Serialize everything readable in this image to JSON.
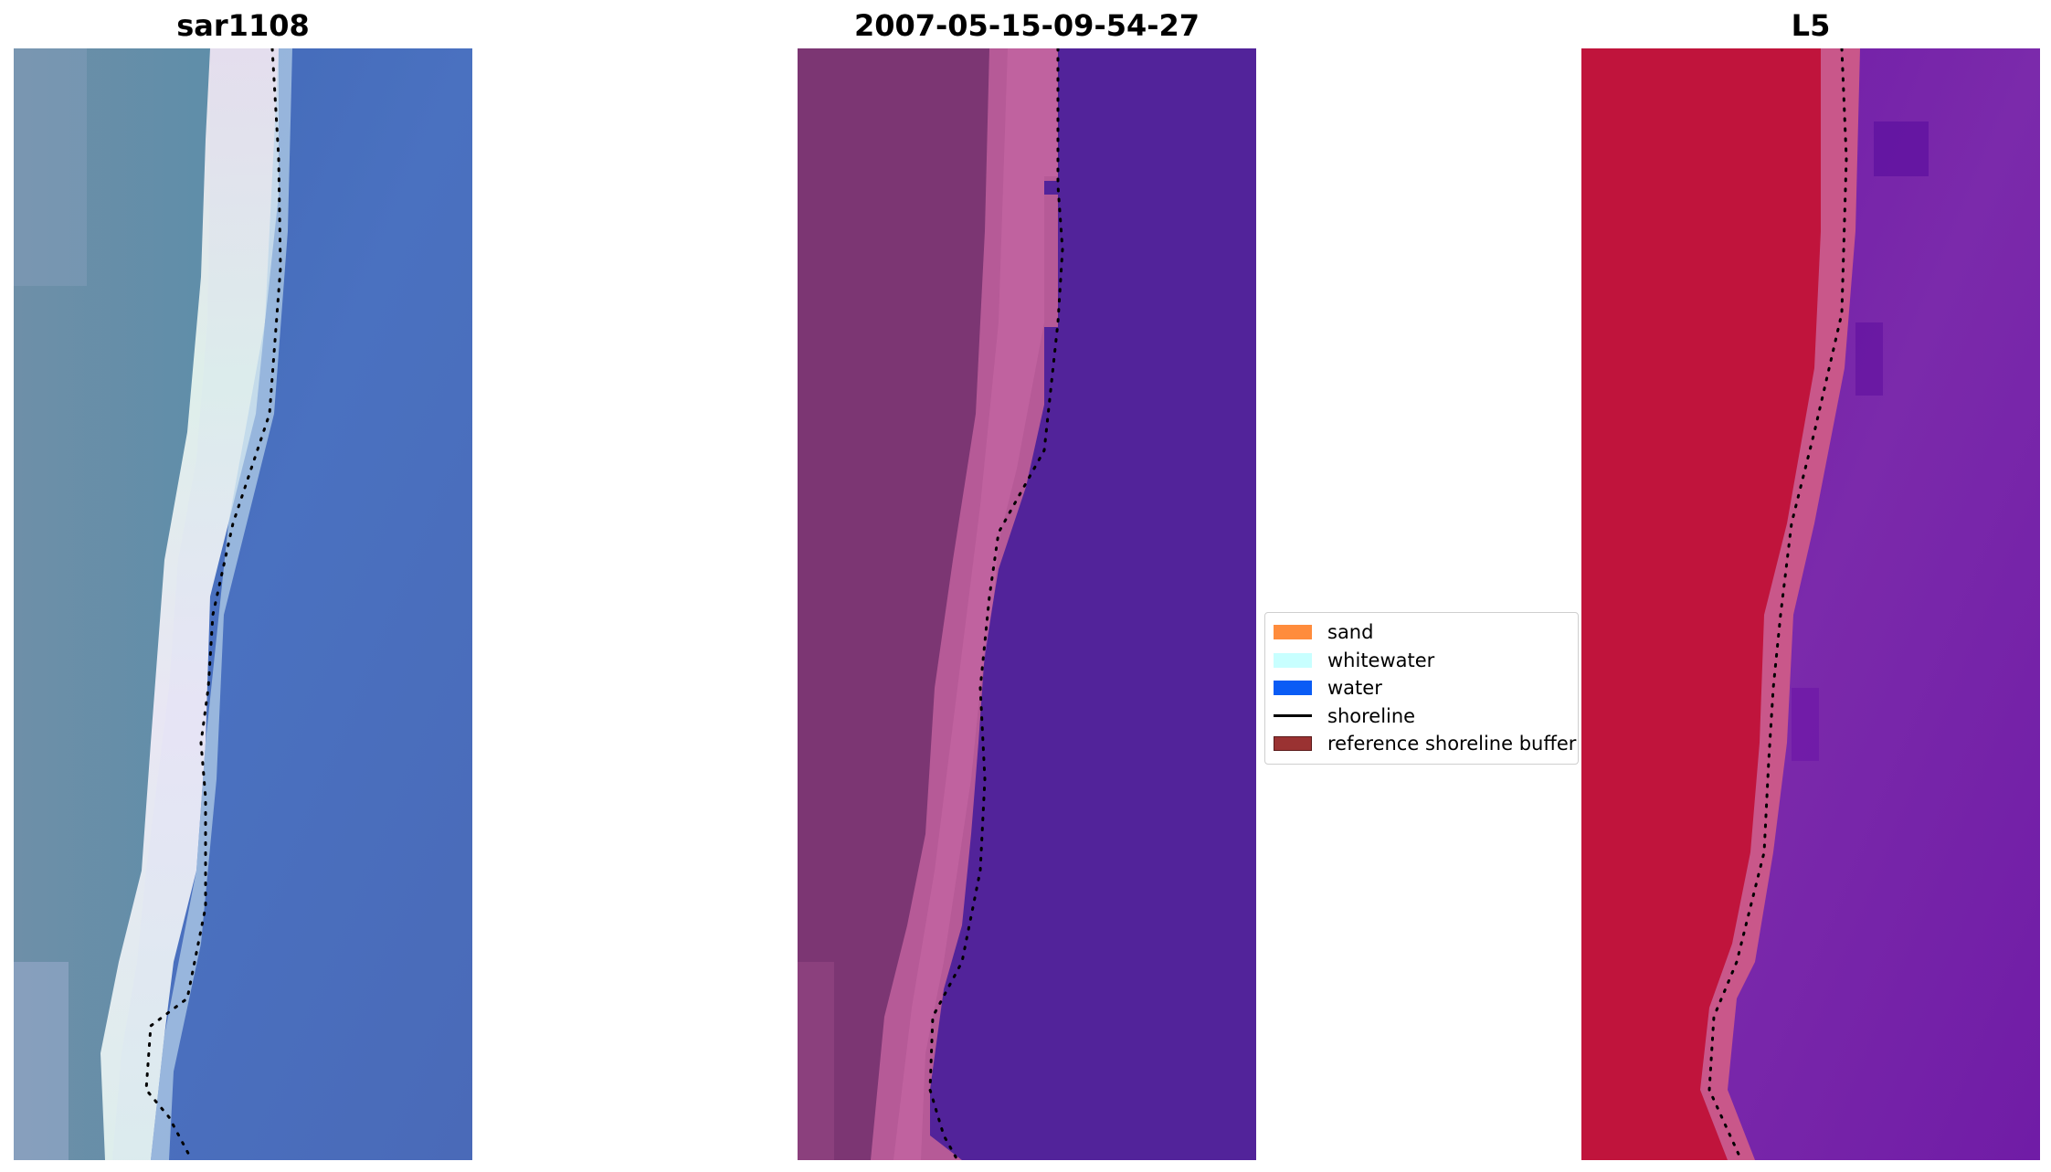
{
  "panels": [
    {
      "id": "rgb",
      "title": "sar1108"
    },
    {
      "id": "class",
      "title": "2007-05-15-09-54-27"
    },
    {
      "id": "index",
      "title": "L5"
    }
  ],
  "legend": {
    "items": [
      {
        "label": "sand",
        "color": "#ff8c3c",
        "kind": "patch"
      },
      {
        "label": "whitewater",
        "color": "#c8ffff",
        "kind": "patch"
      },
      {
        "label": "water",
        "color": "#0a5cf5",
        "kind": "patch"
      },
      {
        "label": "shoreline",
        "color": "#000000",
        "kind": "line"
      },
      {
        "label": "reference shoreline buffer",
        "color": "#9a3232",
        "kind": "patch"
      }
    ]
  },
  "colors": {
    "rgb_land": "#6b8fa6",
    "rgb_water": "#4a6ebd",
    "rgb_surf": "#e6eef5",
    "class_land": "#7a356f",
    "class_beach": "#b85a95",
    "class_water": "#52239a",
    "index_land": "#c2133f",
    "index_beach": "#c9558a",
    "index_water": "#6e1aa6",
    "shoreline_dots": "#000000"
  }
}
